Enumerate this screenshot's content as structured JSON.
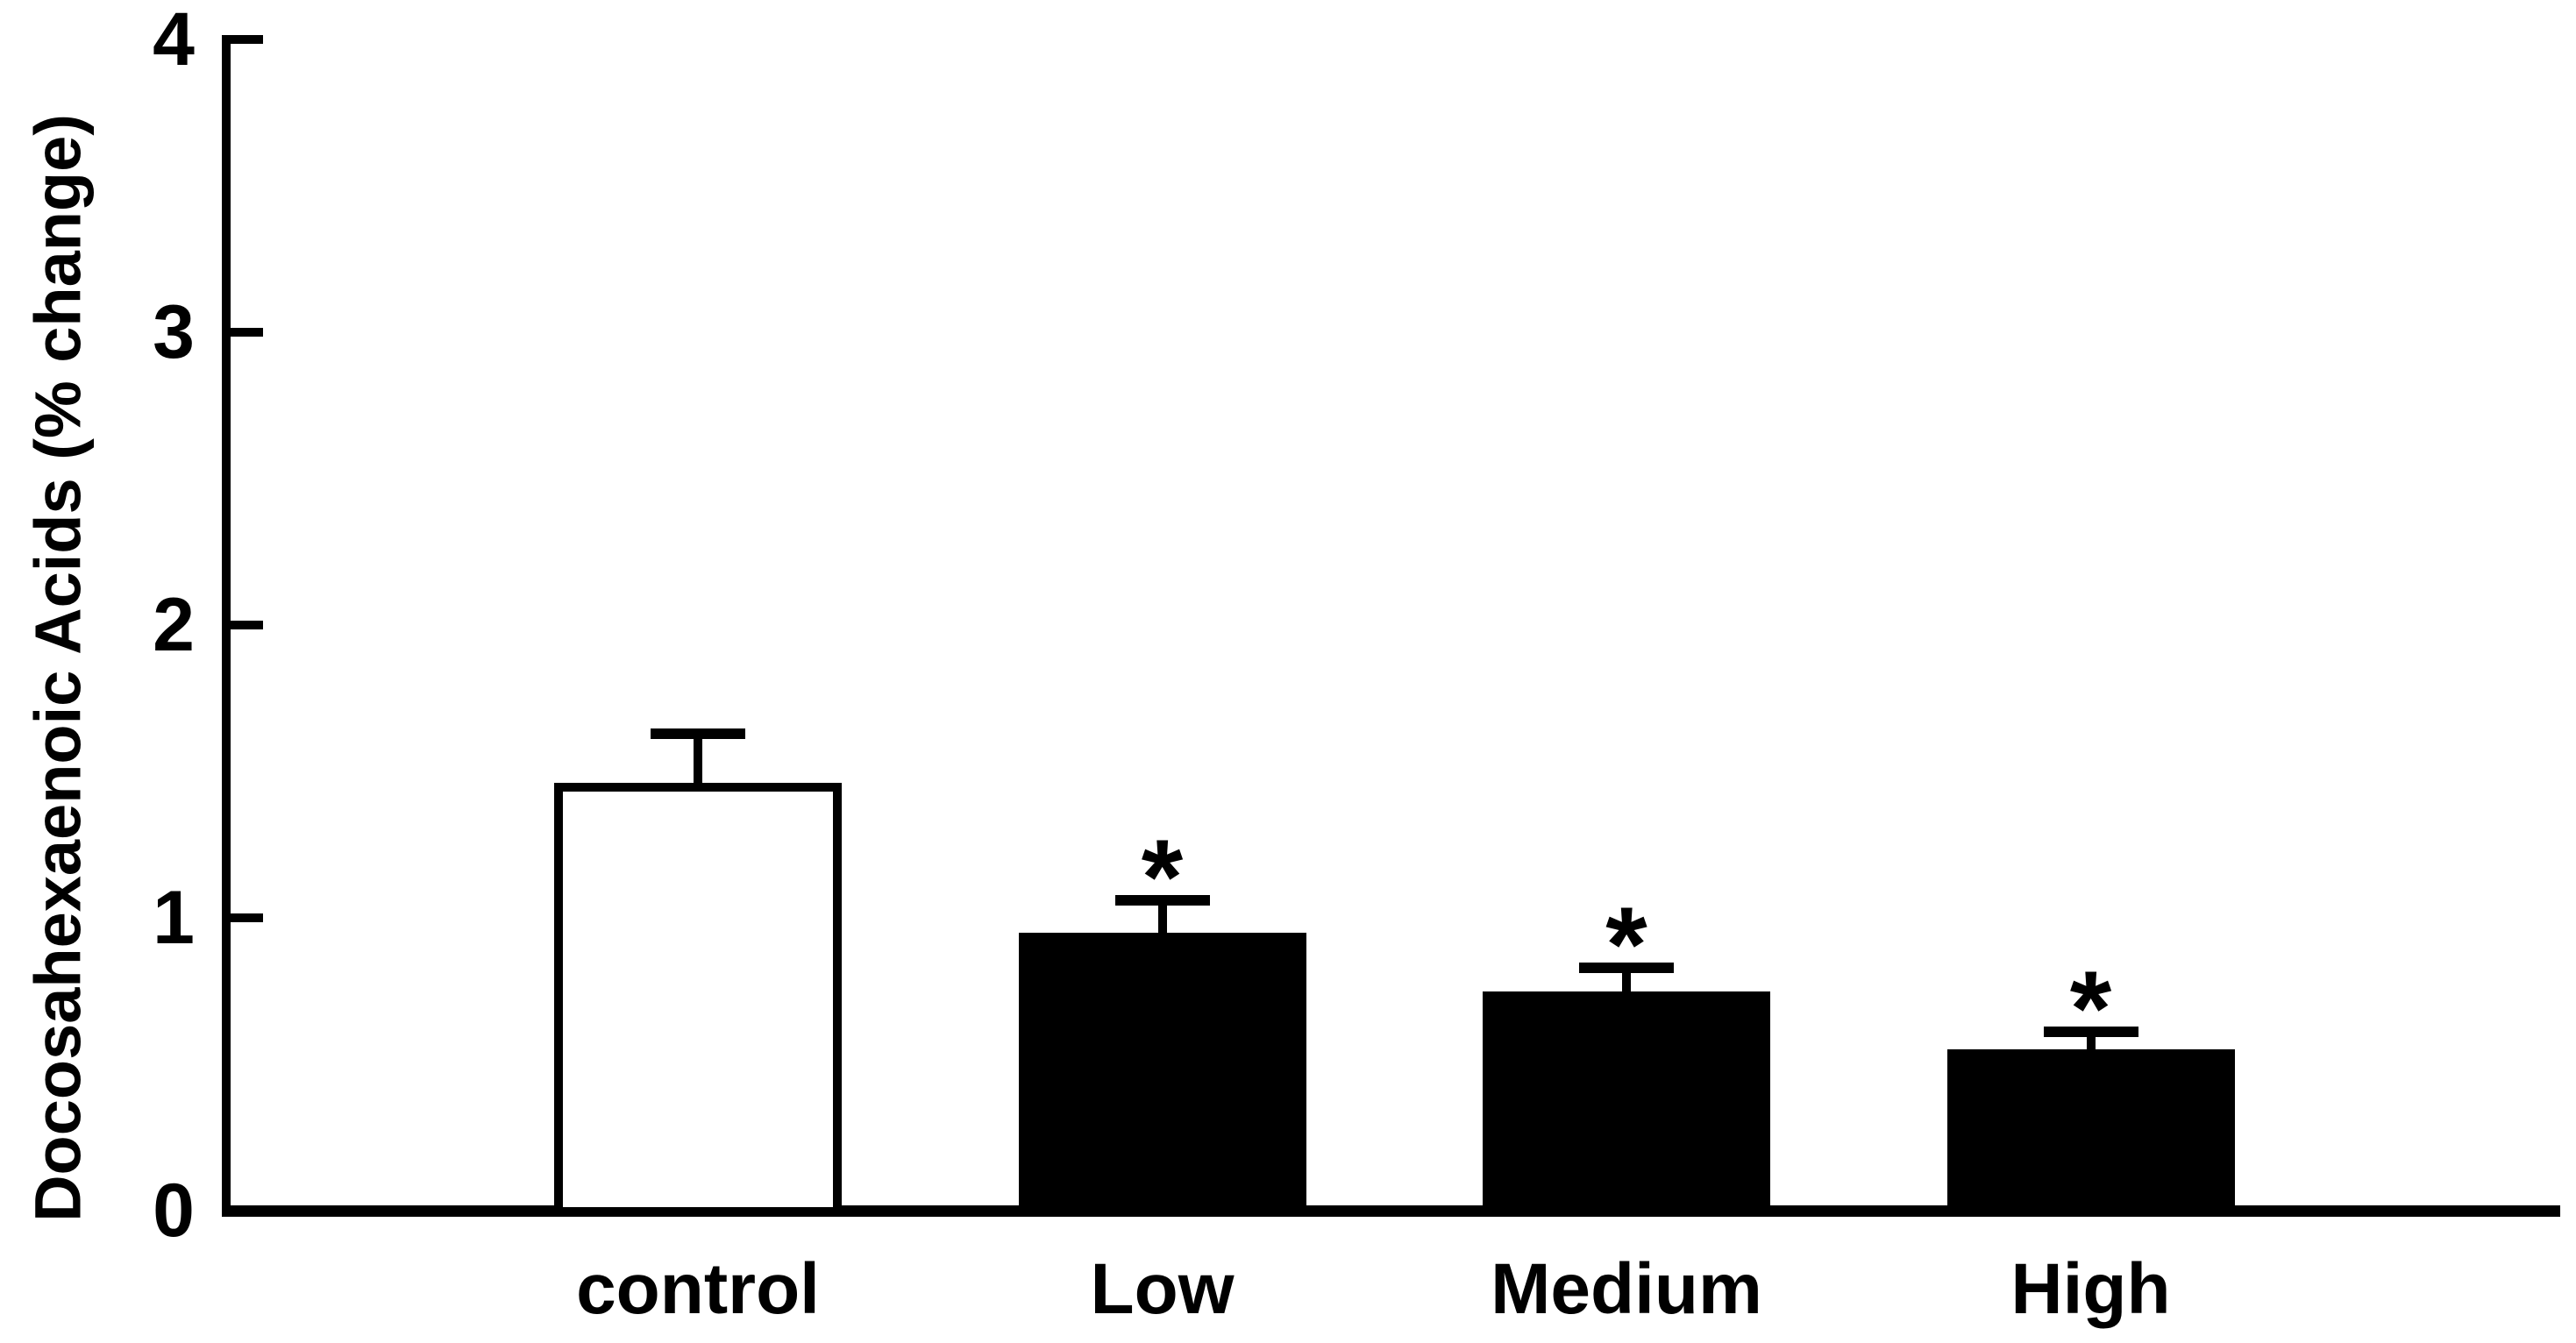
{
  "figure": {
    "background_color": "#ffffff",
    "foreground_color": "#000000"
  },
  "chart_data": {
    "type": "bar",
    "title": "",
    "xlabel": "",
    "ylabel": "Docosahexaenoic Acids (% change)",
    "categories": [
      "control",
      "Low",
      "Medium",
      "High"
    ],
    "values": [
      1.46,
      0.95,
      0.75,
      0.55
    ],
    "errors_plus": [
      0.17,
      0.11,
      0.08,
      0.06
    ],
    "significance_markers": [
      "",
      "*",
      "*",
      "*"
    ],
    "bar_fill_colors": [
      "#ffffff",
      "#000000",
      "#000000",
      "#000000"
    ],
    "bar_edge_color": "#000000",
    "ylim": [
      0,
      4
    ],
    "yticks": [
      0,
      1,
      2,
      3,
      4
    ],
    "ytick_labels": [
      "0",
      "1",
      "2",
      "3",
      "4"
    ],
    "grid": false,
    "legend": "none",
    "error_bar_style": "upper-cap-T"
  }
}
